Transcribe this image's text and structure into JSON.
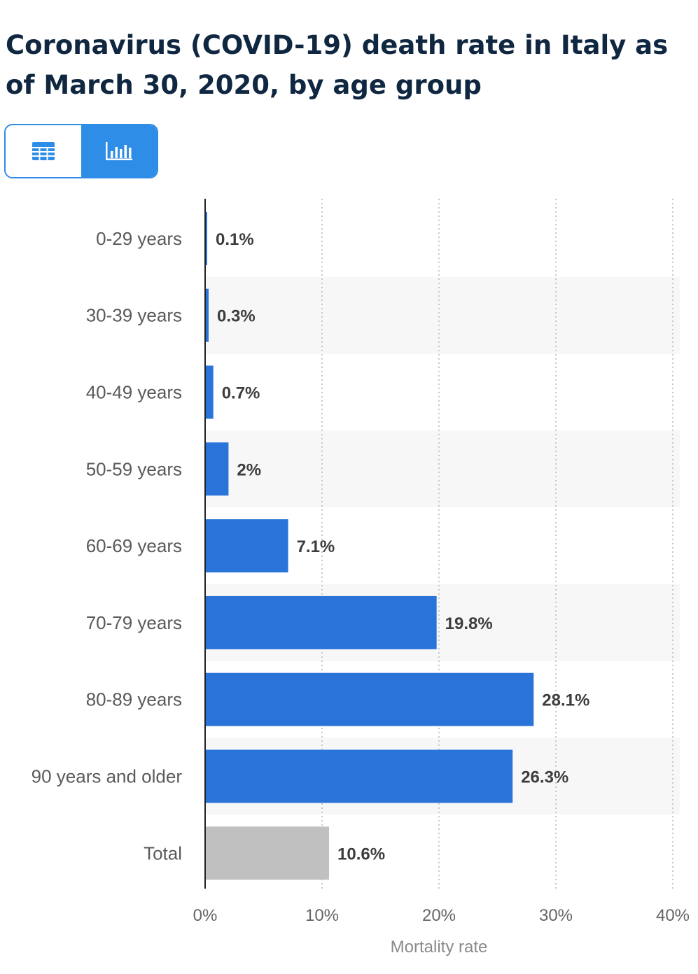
{
  "header": {
    "title": "Coronavirus (COVID-19) death rate in Italy as of March 30, 2020, by age group"
  },
  "view_toggle": {
    "table_icon": "table-icon",
    "chart_icon": "bar-chart-icon",
    "active": "chart"
  },
  "colors": {
    "bar": "#2a74d9",
    "total_bar": "#c0c0c0",
    "stripe": "#f7f7f7",
    "title": "#0f2740",
    "toggle_accent": "#2e8de6"
  },
  "chart_data": {
    "type": "bar",
    "orientation": "horizontal",
    "title": "Coronavirus (COVID-19) death rate in Italy as of March 30, 2020, by age group",
    "categories": [
      "0-29 years",
      "30-39 years",
      "40-49 years",
      "50-59 years",
      "60-69 years",
      "70-79 years",
      "80-89 years",
      "90 years and older",
      "Total"
    ],
    "values": [
      0.1,
      0.3,
      0.7,
      2,
      7.1,
      19.8,
      28.1,
      26.3,
      10.6
    ],
    "value_labels": [
      "0.1%",
      "0.3%",
      "0.7%",
      "2%",
      "7.1%",
      "19.8%",
      "28.1%",
      "26.3%",
      "10.6%"
    ],
    "highlight_category": "Total",
    "xlabel": "Mortality rate",
    "ylabel": "",
    "xlim": [
      0,
      40
    ],
    "xticks": [
      0,
      10,
      20,
      30,
      40
    ],
    "xtick_labels": [
      "0%",
      "10%",
      "20%",
      "30%",
      "40%"
    ],
    "grid": true,
    "legend": "none"
  }
}
